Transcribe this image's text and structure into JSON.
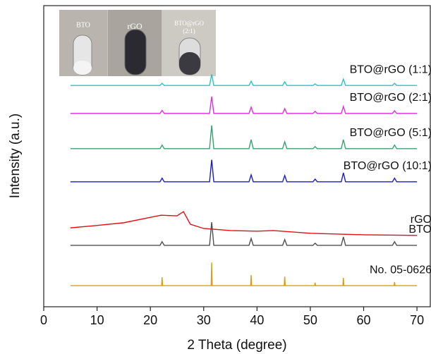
{
  "chart_data": {
    "type": "line",
    "xlabel": "2 Theta (degree)",
    "ylabel": "Intensity (a.u.)",
    "xlim": [
      0,
      72.5
    ],
    "xticks": [
      0,
      10,
      20,
      30,
      40,
      50,
      60,
      70
    ],
    "ylim": [
      0,
      100
    ],
    "inset_labels": [
      "BTO",
      "rGO",
      "BTO@rGO",
      "(2:1)"
    ],
    "series": [
      {
        "name": "BTO@rGO (1:1)",
        "color": "#2bc4c4",
        "x": [
          5,
          21.8,
          22.2,
          22.6,
          31.1,
          31.5,
          31.9,
          38.5,
          38.9,
          39.3,
          44.8,
          45.2,
          45.6,
          50.5,
          50.9,
          51.3,
          55.8,
          56.2,
          56.6,
          65.4,
          65.8,
          66.2,
          70
        ],
        "values": [
          73.5,
          73.5,
          74.2,
          73.5,
          73.5,
          77.2,
          73.5,
          73.5,
          74.9,
          73.5,
          73.5,
          74.7,
          73.5,
          73.5,
          74.0,
          73.5,
          73.5,
          75.6,
          73.5,
          73.5,
          74.2,
          73.5,
          73.5
        ]
      },
      {
        "name": "BTO@rGO (2:1)",
        "color": "#e030e0",
        "x": [
          5,
          21.8,
          22.2,
          22.6,
          31.1,
          31.5,
          31.9,
          38.5,
          38.9,
          39.3,
          44.8,
          45.2,
          45.6,
          50.5,
          50.9,
          51.3,
          55.8,
          56.2,
          56.6,
          65.4,
          65.8,
          66.2,
          70
        ],
        "values": [
          64.2,
          64.2,
          65.2,
          64.2,
          64.2,
          69.8,
          64.2,
          64.2,
          66.3,
          64.2,
          64.2,
          65.8,
          64.2,
          64.2,
          64.9,
          64.2,
          64.2,
          66.5,
          64.2,
          64.2,
          65.1,
          64.2,
          64.2
        ]
      },
      {
        "name": "BTO@rGO (5:1)",
        "color": "#3aa070",
        "x": [
          5,
          21.8,
          22.2,
          22.6,
          31.1,
          31.5,
          31.9,
          38.5,
          38.9,
          39.3,
          44.8,
          45.2,
          45.6,
          50.5,
          50.9,
          51.3,
          55.8,
          56.2,
          56.6,
          65.4,
          65.8,
          66.2,
          70
        ],
        "values": [
          52.5,
          52.5,
          53.7,
          52.5,
          52.5,
          60.2,
          52.5,
          52.5,
          55.5,
          52.5,
          52.5,
          54.8,
          52.5,
          52.5,
          53.2,
          52.5,
          52.5,
          55.5,
          52.5,
          52.5,
          53.7,
          52.5,
          52.5
        ]
      },
      {
        "name": "BTO@rGO (10:1)",
        "color": "#1a1ad0",
        "x": [
          5,
          21.8,
          22.2,
          22.6,
          31.1,
          31.5,
          31.9,
          38.5,
          38.9,
          39.3,
          44.8,
          45.2,
          45.6,
          50.5,
          50.9,
          51.3,
          55.8,
          56.2,
          56.6,
          65.4,
          65.8,
          66.2,
          70
        ],
        "values": [
          41.5,
          41.5,
          42.7,
          41.5,
          41.5,
          48.8,
          41.5,
          41.5,
          43.8,
          41.5,
          41.5,
          43.6,
          41.5,
          41.5,
          42.4,
          41.5,
          41.5,
          44.5,
          41.5,
          41.5,
          42.7,
          41.5,
          41.5
        ]
      },
      {
        "name": "rGO",
        "color": "#e01010",
        "x": [
          5,
          10,
          15,
          20,
          22,
          25,
          26.2,
          27.5,
          30,
          35,
          40,
          43,
          50,
          60,
          70
        ],
        "values": [
          26.2,
          27,
          27.9,
          29.7,
          30.4,
          30.2,
          31.6,
          27.4,
          26,
          25.3,
          25.1,
          25.3,
          24.4,
          23.9,
          23.7
        ]
      },
      {
        "name": "BTO",
        "color": "#505050",
        "x": [
          5,
          21.8,
          22.2,
          22.6,
          31.1,
          31.5,
          31.9,
          38.5,
          38.9,
          39.3,
          44.8,
          45.2,
          45.6,
          50.5,
          50.9,
          51.3,
          55.8,
          56.2,
          56.6,
          65.4,
          65.8,
          66.2,
          70
        ],
        "values": [
          20.4,
          20.4,
          21.6,
          20.4,
          20.4,
          28.1,
          20.4,
          20.4,
          22.7,
          20.4,
          20.4,
          22.3,
          20.4,
          20.4,
          21.1,
          20.4,
          20.4,
          23.2,
          20.4,
          20.4,
          21.6,
          20.4,
          20.4
        ]
      },
      {
        "name": "No. 05-0626",
        "color": "#d4a017",
        "x": [
          5,
          22.1,
          22.2,
          22.3,
          31.4,
          31.5,
          31.6,
          38.8,
          38.9,
          39.0,
          45.1,
          45.2,
          45.3,
          50.8,
          50.9,
          51.0,
          56.1,
          56.2,
          56.3,
          65.7,
          65.8,
          65.9,
          70
        ],
        "values": [
          7,
          7,
          9.8,
          7,
          7,
          14.7,
          7,
          7,
          10.5,
          7,
          7,
          10,
          7,
          7,
          8,
          7,
          7,
          9.6,
          7,
          7,
          8.2,
          7,
          7
        ]
      }
    ]
  }
}
